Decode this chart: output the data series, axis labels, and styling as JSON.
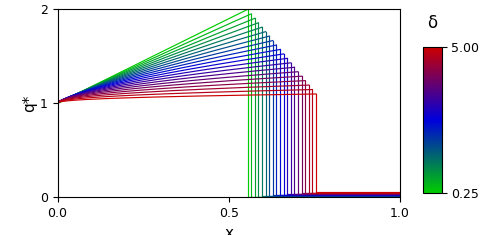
{
  "n_curves": 20,
  "delta_min": 0.25,
  "delta_max": 5.0,
  "xlim": [
    0.0,
    1.0
  ],
  "ylim": [
    0.0,
    2.0
  ],
  "xlabel": "x",
  "ylabel": "q*",
  "xticks": [
    0.0,
    0.5,
    1.0
  ],
  "yticks": [
    0.0,
    1.0,
    2.0
  ],
  "colorbar_label": "δ",
  "colorbar_ticklabels": [
    "0.25",
    "5.00"
  ],
  "cmap_colors": [
    "#00cc00",
    "#0000dd",
    "#cc0000"
  ],
  "linewidth": 0.85,
  "xdrop_min": 0.555,
  "xdrop_max": 0.755,
  "q_low_red": 0.055,
  "figsize": [
    5.0,
    2.35
  ],
  "dpi": 100
}
